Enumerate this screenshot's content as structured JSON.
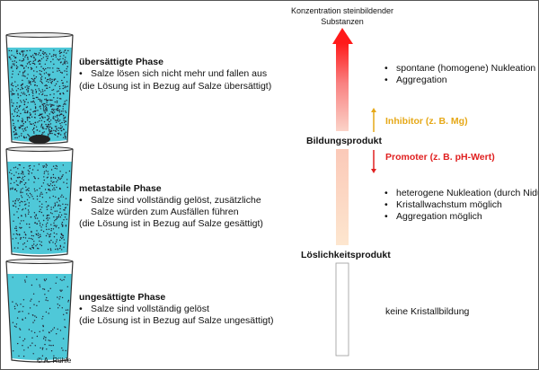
{
  "axis_label": "Konzentration steinbildender Substanzen",
  "axis_label_lines": [
    "Konzentration steinbildender",
    "Substanzen"
  ],
  "levels": {
    "upper": "Bildungsprodukt",
    "lower": "Löslichkeitsprodukt"
  },
  "phases": [
    {
      "title": "übersättigte Phase",
      "bullets": [
        "Salze lösen sich nicht mehr und fallen aus"
      ],
      "note": "(die Lösung ist in Bezug auf Salze übersättigt)",
      "effects": [
        "spontane (homogene) Nukleation",
        "Aggregation"
      ]
    },
    {
      "title": "metastabile Phase",
      "bullets": [
        "Salze sind vollständig gelöst, zusätzliche",
        "Salze würden zum Ausfällen führen"
      ],
      "note": "(die Lösung ist in Bezug auf Salze gesättigt)",
      "effects": [
        "heterogene Nukleation (durch Nidus)",
        "Kristallwachstum möglich",
        "Aggregation möglich"
      ]
    },
    {
      "title": "ungesättigte Phase",
      "bullets": [
        "Salze sind vollständig gelöst"
      ],
      "note": "(die Lösung ist in Bezug auf Salze ungesättigt)",
      "effects": [
        "keine Kristallbildung"
      ]
    }
  ],
  "inhibitor": {
    "label": "Inhibitor (z. B. Mg)",
    "color": "#e6a817"
  },
  "promoter": {
    "label": "Promoter (z. B. pH-Wert)",
    "color": "#e02020"
  },
  "water_color": "#4fc8d8",
  "copyright": "© A. Rühle"
}
